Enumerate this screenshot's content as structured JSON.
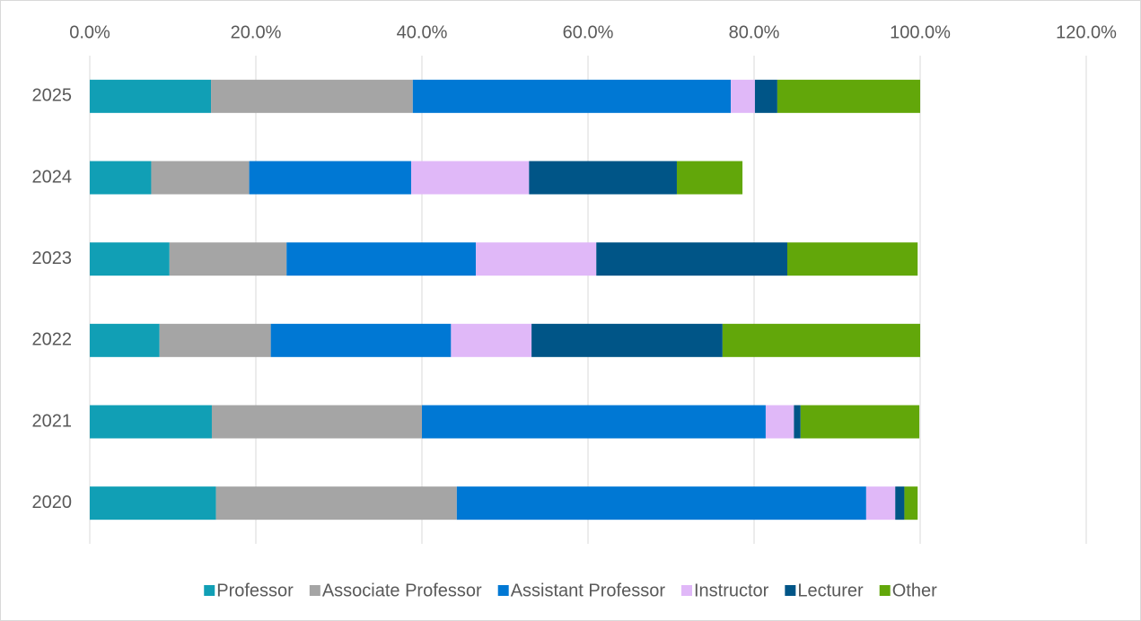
{
  "chart_data": {
    "type": "stacked-bar-horizontal",
    "categories": [
      "2020",
      "2021",
      "2022",
      "2023",
      "2024",
      "2025"
    ],
    "series": [
      {
        "name": "Professor",
        "color": "#119fb5",
        "values": [
          15.2,
          14.7,
          8.4,
          9.6,
          7.4,
          14.6
        ]
      },
      {
        "name": "Associate Professor",
        "color": "#a5a5a5",
        "values": [
          29.0,
          25.3,
          13.4,
          14.1,
          11.8,
          24.3
        ]
      },
      {
        "name": "Assistant Professor",
        "color": "#0078d4",
        "values": [
          49.3,
          41.4,
          21.7,
          22.8,
          19.5,
          38.3
        ]
      },
      {
        "name": "Instructor",
        "color": "#e0b8f8",
        "values": [
          3.5,
          3.4,
          9.7,
          14.5,
          14.2,
          2.9
        ]
      },
      {
        "name": "Lecturer",
        "color": "#005587",
        "values": [
          1.1,
          0.8,
          23.0,
          23.0,
          17.8,
          2.7
        ]
      },
      {
        "name": "Other",
        "color": "#62a70a",
        "values": [
          1.6,
          14.3,
          23.8,
          15.7,
          7.9,
          17.2
        ]
      }
    ],
    "xlim": [
      0,
      120
    ],
    "xticks": [
      {
        "value": 0,
        "label": "0.0%"
      },
      {
        "value": 20,
        "label": "20.0%"
      },
      {
        "value": 40,
        "label": "40.0%"
      },
      {
        "value": 60,
        "label": "60.0%"
      },
      {
        "value": 80,
        "label": "80.0%"
      },
      {
        "value": 100,
        "label": "100.0%"
      },
      {
        "value": 120,
        "label": "120.0%"
      }
    ],
    "grid": true,
    "legend": "bottom"
  }
}
